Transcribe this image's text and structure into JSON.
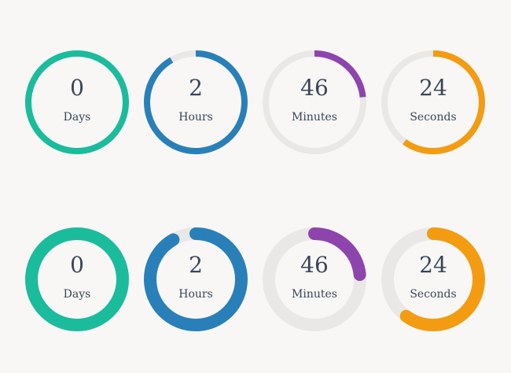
{
  "countdown_rings": [
    {
      "style": "thin",
      "units": [
        {
          "value": "0",
          "label": "Days",
          "fraction": 1.0,
          "color": "#1abc9c"
        },
        {
          "value": "2",
          "label": "Hours",
          "fraction": 0.917,
          "color": "#2980b9"
        },
        {
          "value": "46",
          "label": "Minutes",
          "fraction": 0.233,
          "color": "#8e44ad"
        },
        {
          "value": "24",
          "label": "Seconds",
          "fraction": 0.6,
          "color": "#f39c12"
        }
      ]
    },
    {
      "style": "thick",
      "units": [
        {
          "value": "0",
          "label": "Days",
          "fraction": 1.0,
          "color": "#1abc9c"
        },
        {
          "value": "2",
          "label": "Hours",
          "fraction": 0.917,
          "color": "#2980b9"
        },
        {
          "value": "46",
          "label": "Minutes",
          "fraction": 0.233,
          "color": "#8e44ad"
        },
        {
          "value": "24",
          "label": "Seconds",
          "fraction": 0.6,
          "color": "#f39c12"
        }
      ]
    }
  ],
  "track_color": "#e9e8e6"
}
